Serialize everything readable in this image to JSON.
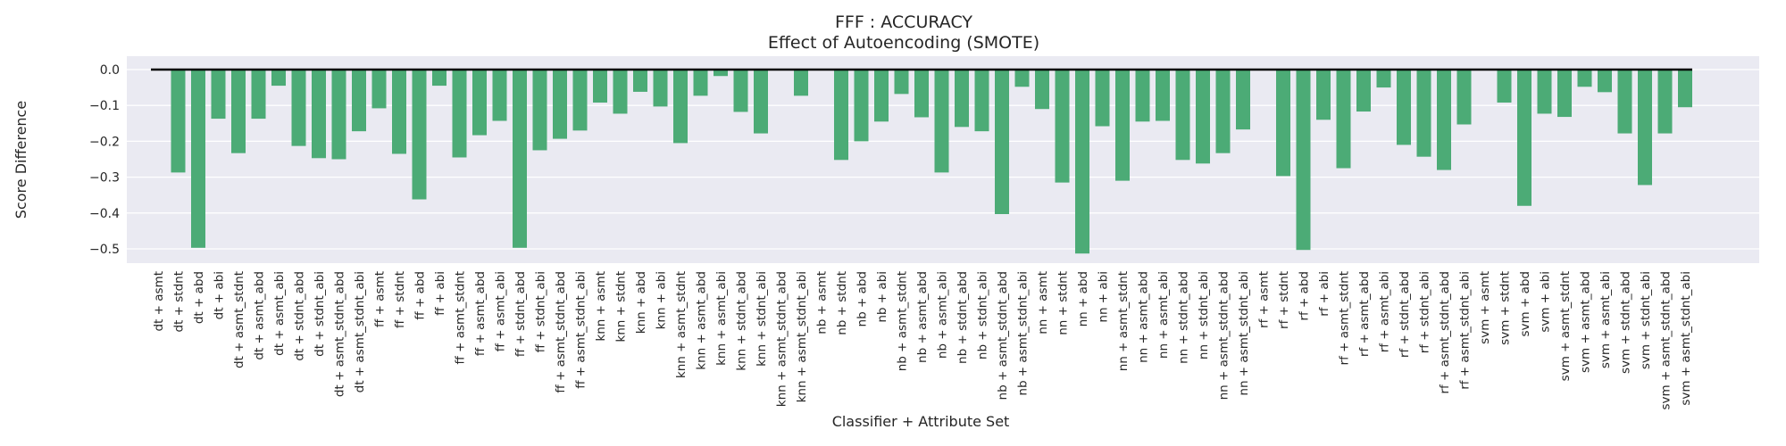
{
  "chart_data": {
    "type": "bar",
    "title": "FFF : ACCURACY",
    "subtitle": "Effect of Autoencoding (SMOTE)",
    "xlabel": "Classifier + Attribute Set",
    "ylabel": "Score Difference",
    "ylim": [
      -0.54,
      0.035
    ],
    "yticks": [
      0.0,
      -0.1,
      -0.2,
      -0.3,
      -0.4,
      -0.5
    ],
    "ytick_labels": [
      "0.0",
      "−0.1",
      "−0.2",
      "−0.3",
      "−0.4",
      "−0.5"
    ],
    "grid": true,
    "reference_line": 0.0,
    "colors": {
      "bar": "#4cab76",
      "background": "#eaeaf2",
      "grid": "#ffffff",
      "reference_line": "#000000",
      "text": "#262626"
    },
    "categories": [
      "dt + asmt",
      "dt + stdnt",
      "dt + abd",
      "dt + abi",
      "dt + asmt_stdnt",
      "dt + asmt_abd",
      "dt + asmt_abi",
      "dt + stdnt_abd",
      "dt + stdnt_abi",
      "dt + asmt_stdnt_abd",
      "dt + asmt_stdnt_abi",
      "ff + asmt",
      "ff + stdnt",
      "ff + abd",
      "ff + abi",
      "ff + asmt_stdnt",
      "ff + asmt_abd",
      "ff + asmt_abi",
      "ff + stdnt_abd",
      "ff + stdnt_abi",
      "ff + asmt_stdnt_abd",
      "ff + asmt_stdnt_abi",
      "knn + asmt",
      "knn + stdnt",
      "knn + abd",
      "knn + abi",
      "knn + asmt_stdnt",
      "knn + asmt_abd",
      "knn + asmt_abi",
      "knn + stdnt_abd",
      "knn + stdnt_abi",
      "knn + asmt_stdnt_abd",
      "knn + asmt_stdnt_abi",
      "nb + asmt",
      "nb + stdnt",
      "nb + abd",
      "nb + abi",
      "nb + asmt_stdnt",
      "nb + asmt_abd",
      "nb + asmt_abi",
      "nb + stdnt_abd",
      "nb + stdnt_abi",
      "nb + asmt_stdnt_abd",
      "nb + asmt_stdnt_abi",
      "nn + asmt",
      "nn + stdnt",
      "nn + abd",
      "nn + abi",
      "nn + asmt_stdnt",
      "nn + asmt_abd",
      "nn + asmt_abi",
      "nn + stdnt_abd",
      "nn + stdnt_abi",
      "nn + asmt_stdnt_abd",
      "nn + asmt_stdnt_abi",
      "rf + asmt",
      "rf + stdnt",
      "rf + abd",
      "rf + abi",
      "rf + asmt_stdnt",
      "rf + asmt_abd",
      "rf + asmt_abi",
      "rf + stdnt_abd",
      "rf + stdnt_abi",
      "rf + asmt_stdnt_abd",
      "rf + asmt_stdnt_abi",
      "svm + asmt",
      "svm + stdnt",
      "svm + abd",
      "svm + abi",
      "svm + asmt_stdnt",
      "svm + asmt_abd",
      "svm + asmt_abi",
      "svm + stdnt_abd",
      "svm + stdnt_abi",
      "svm + asmt_stdnt_abd",
      "svm + asmt_stdnt_abi"
    ],
    "values": [
      0.0,
      -0.287,
      -0.497,
      -0.137,
      -0.233,
      -0.137,
      -0.045,
      -0.213,
      -0.247,
      -0.25,
      -0.172,
      -0.108,
      -0.235,
      -0.362,
      -0.045,
      -0.245,
      -0.183,
      -0.143,
      -0.497,
      -0.225,
      -0.193,
      -0.17,
      -0.092,
      -0.123,
      -0.062,
      -0.103,
      -0.205,
      -0.073,
      -0.018,
      -0.118,
      -0.178,
      0.0,
      -0.073,
      0.0,
      -0.252,
      -0.2,
      -0.145,
      -0.068,
      -0.133,
      -0.287,
      -0.16,
      -0.172,
      -0.403,
      -0.048,
      -0.11,
      -0.315,
      -0.513,
      -0.158,
      -0.31,
      -0.145,
      -0.143,
      -0.252,
      -0.262,
      -0.233,
      -0.167,
      0.0,
      -0.297,
      -0.503,
      -0.14,
      -0.275,
      -0.117,
      -0.05,
      -0.21,
      -0.243,
      -0.28,
      -0.153,
      0.0,
      -0.092,
      -0.38,
      -0.123,
      -0.132,
      -0.048,
      -0.063,
      -0.178,
      -0.322,
      -0.178,
      -0.105
    ]
  }
}
